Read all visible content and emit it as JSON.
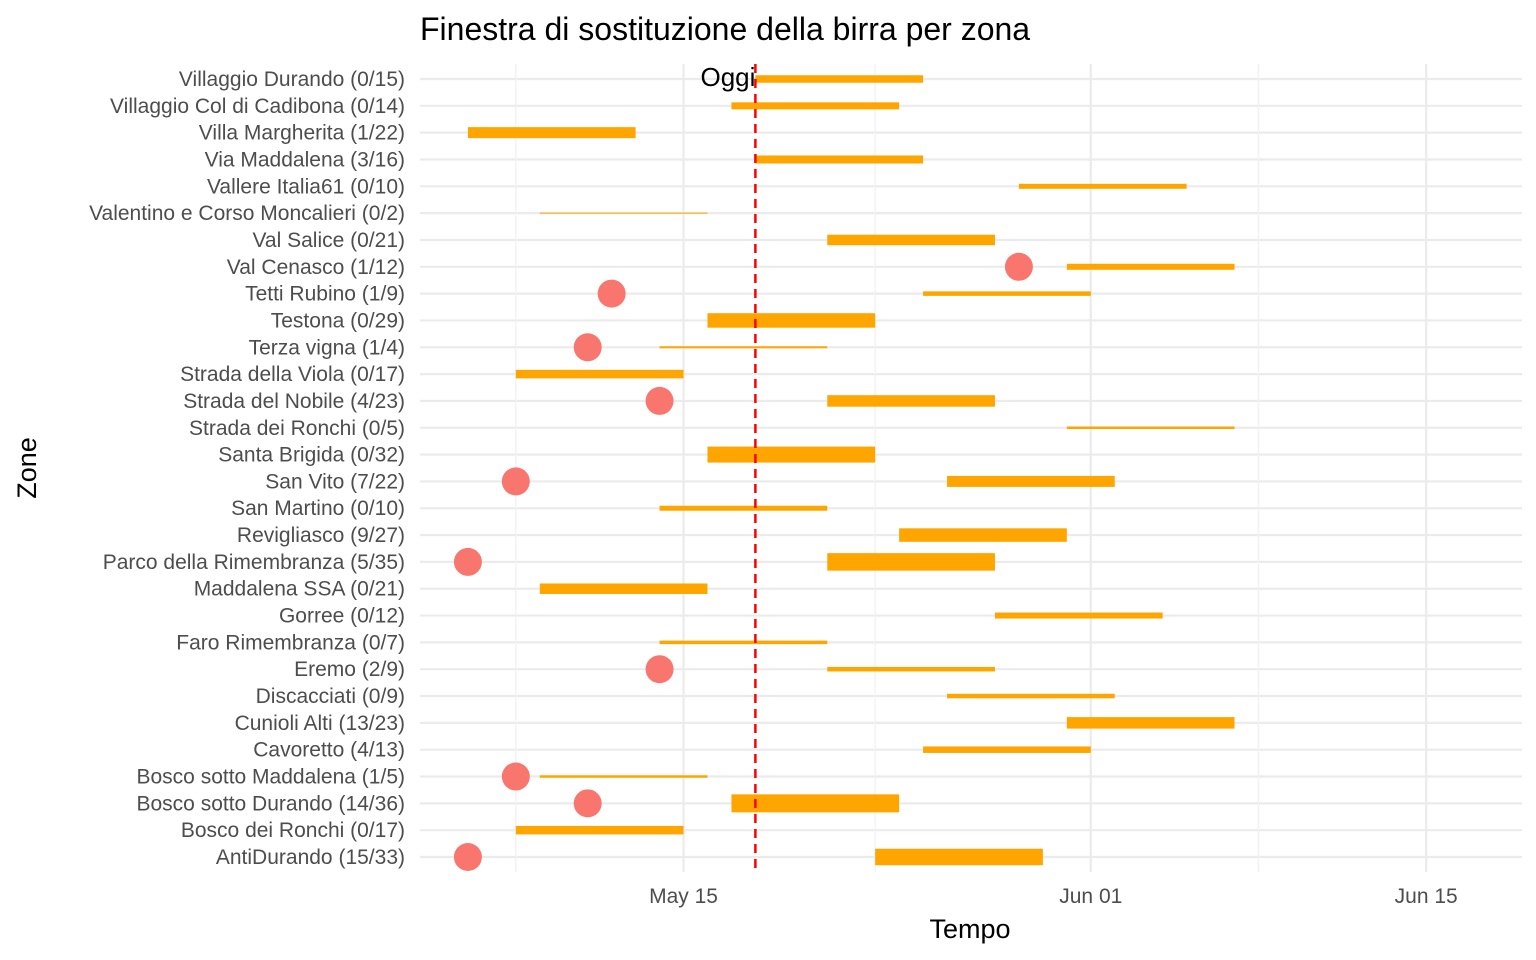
{
  "chart_data": {
    "type": "gantt",
    "title": "Finestra di sostituzione della birra per zona",
    "xlabel": "Tempo",
    "ylabel": "Zone",
    "x_type": "date",
    "xlim": [
      "2024-05-04",
      "2024-06-19"
    ],
    "x_ticks": [
      {
        "date": "2024-05-15",
        "label": "May 15"
      },
      {
        "date": "2024-06-01",
        "label": "Jun 01"
      },
      {
        "date": "2024-06-15",
        "label": "Jun 15"
      }
    ],
    "x_minor_ticks": [
      "2024-05-08",
      "2024-05-23",
      "2024-06-08"
    ],
    "grid": true,
    "today": {
      "date": "2024-05-18",
      "label": "Oggi",
      "color": "#ff0000",
      "style": "dashed"
    },
    "bar_color": "#ffa500",
    "point_color": "#f8766d",
    "bar_thickness_meaning": "proportional to zone total",
    "zones": [
      {
        "label": "Villaggio Durando (0/15)",
        "done": 0,
        "total": 15,
        "start": "2024-05-18",
        "end": "2024-05-25",
        "point": null
      },
      {
        "label": "Villaggio Col di Cadibona (0/14)",
        "done": 0,
        "total": 14,
        "start": "2024-05-17",
        "end": "2024-05-24",
        "point": null
      },
      {
        "label": "Villa Margherita (1/22)",
        "done": 1,
        "total": 22,
        "start": "2024-05-06",
        "end": "2024-05-13",
        "point": null
      },
      {
        "label": "Via Maddalena (3/16)",
        "done": 3,
        "total": 16,
        "start": "2024-05-18",
        "end": "2024-05-25",
        "point": null
      },
      {
        "label": "Vallere Italia61 (0/10)",
        "done": 0,
        "total": 10,
        "start": "2024-05-29",
        "end": "2024-06-05",
        "point": null
      },
      {
        "label": "Valentino e Corso Moncalieri (0/2)",
        "done": 0,
        "total": 2,
        "start": "2024-05-09",
        "end": "2024-05-16",
        "point": null
      },
      {
        "label": "Val Salice (0/21)",
        "done": 0,
        "total": 21,
        "start": "2024-05-21",
        "end": "2024-05-28",
        "point": null
      },
      {
        "label": "Val Cenasco (1/12)",
        "done": 1,
        "total": 12,
        "start": "2024-05-31",
        "end": "2024-06-07",
        "point": "2024-05-29"
      },
      {
        "label": "Tetti Rubino (1/9)",
        "done": 1,
        "total": 9,
        "start": "2024-05-25",
        "end": "2024-06-01",
        "point": "2024-05-12"
      },
      {
        "label": "Testona (0/29)",
        "done": 0,
        "total": 29,
        "start": "2024-05-16",
        "end": "2024-05-23",
        "point": null
      },
      {
        "label": "Terza vigna (1/4)",
        "done": 1,
        "total": 4,
        "start": "2024-05-14",
        "end": "2024-05-21",
        "point": "2024-05-11"
      },
      {
        "label": "Strada della Viola (0/17)",
        "done": 0,
        "total": 17,
        "start": "2024-05-08",
        "end": "2024-05-15",
        "point": null
      },
      {
        "label": "Strada del Nobile (4/23)",
        "done": 4,
        "total": 23,
        "start": "2024-05-21",
        "end": "2024-05-28",
        "point": "2024-05-14"
      },
      {
        "label": "Strada dei Ronchi (0/5)",
        "done": 0,
        "total": 5,
        "start": "2024-05-31",
        "end": "2024-06-07",
        "point": null
      },
      {
        "label": "Santa Brigida (0/32)",
        "done": 0,
        "total": 32,
        "start": "2024-05-16",
        "end": "2024-05-23",
        "point": null
      },
      {
        "label": "San Vito (7/22)",
        "done": 7,
        "total": 22,
        "start": "2024-05-26",
        "end": "2024-06-02",
        "point": "2024-05-08"
      },
      {
        "label": "San Martino (0/10)",
        "done": 0,
        "total": 10,
        "start": "2024-05-14",
        "end": "2024-05-21",
        "point": null
      },
      {
        "label": "Revigliasco (9/27)",
        "done": 9,
        "total": 27,
        "start": "2024-05-24",
        "end": "2024-05-31",
        "point": null
      },
      {
        "label": "Parco della Rimembranza (5/35)",
        "done": 5,
        "total": 35,
        "start": "2024-05-21",
        "end": "2024-05-28",
        "point": "2024-05-06"
      },
      {
        "label": "Maddalena SSA (0/21)",
        "done": 0,
        "total": 21,
        "start": "2024-05-09",
        "end": "2024-05-16",
        "point": null
      },
      {
        "label": "Gorree (0/12)",
        "done": 0,
        "total": 12,
        "start": "2024-05-28",
        "end": "2024-06-04",
        "point": null
      },
      {
        "label": "Faro Rimembranza (0/7)",
        "done": 0,
        "total": 7,
        "start": "2024-05-14",
        "end": "2024-05-21",
        "point": null
      },
      {
        "label": "Eremo (2/9)",
        "done": 2,
        "total": 9,
        "start": "2024-05-21",
        "end": "2024-05-28",
        "point": "2024-05-14"
      },
      {
        "label": "Discacciati (0/9)",
        "done": 0,
        "total": 9,
        "start": "2024-05-26",
        "end": "2024-06-02",
        "point": null
      },
      {
        "label": "Cunioli Alti (13/23)",
        "done": 13,
        "total": 23,
        "start": "2024-05-31",
        "end": "2024-06-07",
        "point": null
      },
      {
        "label": "Cavoretto (4/13)",
        "done": 4,
        "total": 13,
        "start": "2024-05-25",
        "end": "2024-06-01",
        "point": null
      },
      {
        "label": "Bosco sotto Maddalena (1/5)",
        "done": 1,
        "total": 5,
        "start": "2024-05-09",
        "end": "2024-05-16",
        "point": "2024-05-08"
      },
      {
        "label": "Bosco sotto Durando (14/36)",
        "done": 14,
        "total": 36,
        "start": "2024-05-17",
        "end": "2024-05-24",
        "point": "2024-05-11"
      },
      {
        "label": "Bosco dei Ronchi (0/17)",
        "done": 0,
        "total": 17,
        "start": "2024-05-08",
        "end": "2024-05-15",
        "point": null
      },
      {
        "label": "AntiDurando (15/33)",
        "done": 15,
        "total": 33,
        "start": "2024-05-23",
        "end": "2024-05-30",
        "point": "2024-05-06"
      }
    ]
  }
}
